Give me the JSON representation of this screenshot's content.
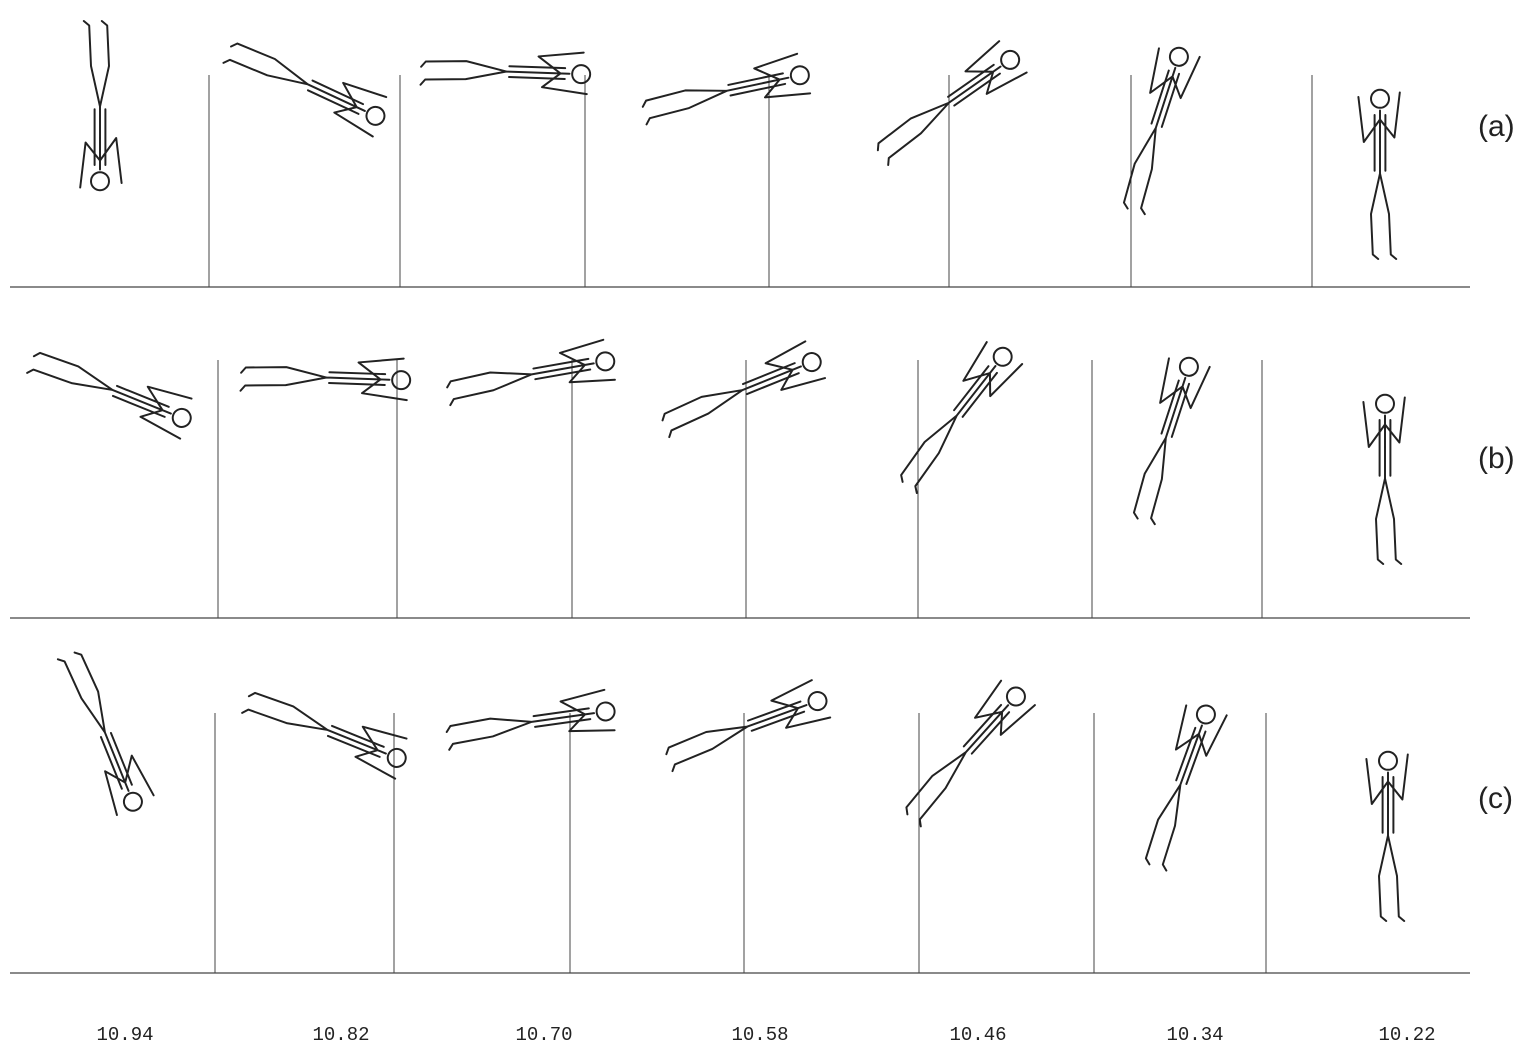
{
  "rows": [
    {
      "label": "(a)"
    },
    {
      "label": "(b)"
    },
    {
      "label": "(c)"
    }
  ],
  "times": [
    "10.94",
    "10.82",
    "10.70",
    "10.58",
    "10.46",
    "10.34",
    "10.22"
  ]
}
